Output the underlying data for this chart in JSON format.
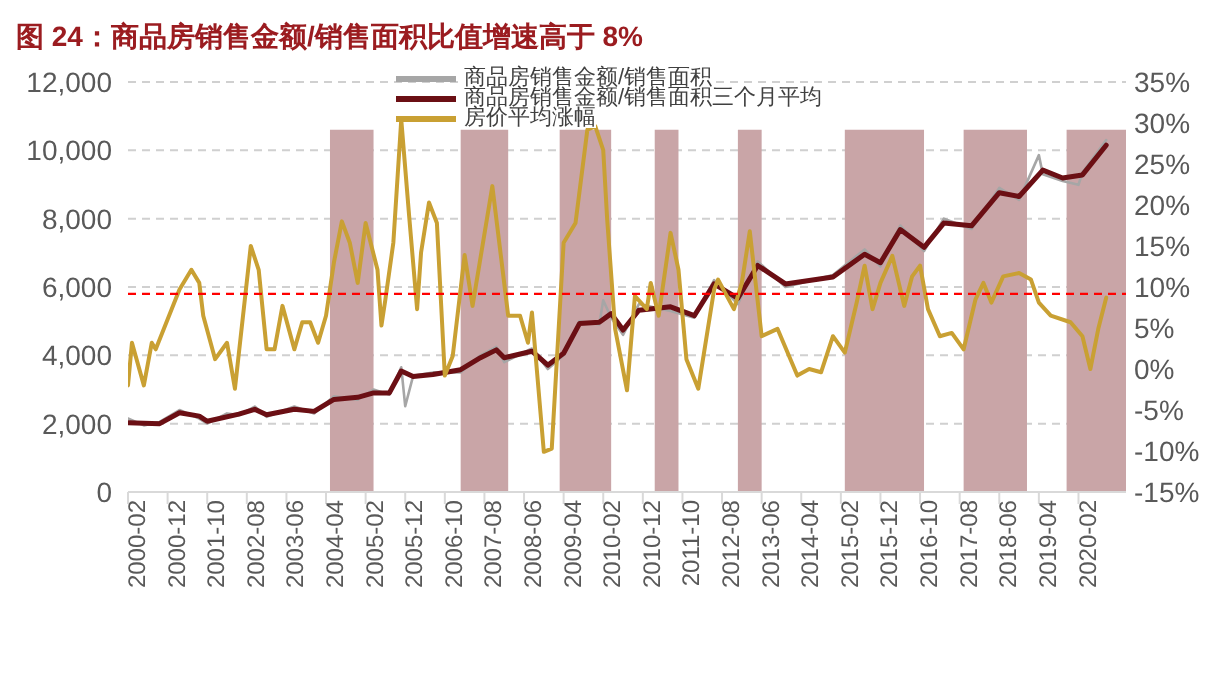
{
  "chart_data": {
    "type": "line",
    "title": "图 24：商品房销售金额/销售面积比值增速高于 8%",
    "xlim": [
      "2000-02",
      "2021-02"
    ],
    "xticks": [
      "2000-02",
      "2000-12",
      "2001-10",
      "2002-08",
      "2003-06",
      "2004-04",
      "2005-02",
      "2005-12",
      "2006-10",
      "2007-08",
      "2008-06",
      "2009-04",
      "2010-02",
      "2010-12",
      "2011-10",
      "2012-08",
      "2013-06",
      "2014-04",
      "2015-02",
      "2015-12",
      "2016-10",
      "2017-08",
      "2018-06",
      "2019-04",
      "2020-02"
    ],
    "ylim": [
      0,
      12000
    ],
    "yticks": [
      {
        "value": 0,
        "label": "0"
      },
      {
        "value": 2000,
        "label": "2,000"
      },
      {
        "value": 4000,
        "label": "4,000"
      },
      {
        "value": 6000,
        "label": "6,000"
      },
      {
        "value": 8000,
        "label": "8,000"
      },
      {
        "value": 10000,
        "label": "10,000"
      },
      {
        "value": 12000,
        "label": "12,000"
      }
    ],
    "y2lim": [
      -15,
      35
    ],
    "y2ticks": [
      {
        "value": -15,
        "label": "-15%"
      },
      {
        "value": -10,
        "label": "-10%"
      },
      {
        "value": -5,
        "label": "-5%"
      },
      {
        "value": 0,
        "label": "0%"
      },
      {
        "value": 5,
        "label": "5%"
      },
      {
        "value": 10,
        "label": "10%"
      },
      {
        "value": 15,
        "label": "15%"
      },
      {
        "value": 20,
        "label": "20%"
      },
      {
        "value": 25,
        "label": "25%"
      },
      {
        "value": 30,
        "label": "30%"
      },
      {
        "value": 35,
        "label": "35%"
      }
    ],
    "grid": "y",
    "legend": "top",
    "marker": "none",
    "line_style": "solid",
    "series": [
      {
        "name": "商品房销售金额/销售面积",
        "color": "#a6a6a6",
        "x": [
          "2000-02",
          "2000-06",
          "2000-10",
          "2001-03",
          "2001-08",
          "2001-10",
          "2002-03",
          "2002-06",
          "2002-10",
          "2003-01",
          "2003-08",
          "2004-01",
          "2004-06",
          "2004-12",
          "2005-04",
          "2005-08",
          "2005-11",
          "2005-12",
          "2006-02",
          "2006-07",
          "2007-02",
          "2007-07",
          "2007-11",
          "2008-01",
          "2008-08",
          "2008-12",
          "2009-04",
          "2009-08",
          "2010-01",
          "2010-02",
          "2010-04",
          "2010-07",
          "2010-11",
          "2011-07",
          "2012-01",
          "2012-06",
          "2012-12",
          "2013-05",
          "2013-12",
          "2014-12",
          "2015-08",
          "2015-12",
          "2016-05",
          "2016-11",
          "2017-04",
          "2017-11",
          "2018-06",
          "2018-11",
          "2019-04",
          "2019-05",
          "2019-10",
          "2020-02",
          "2020-03",
          "2020-09"
        ],
        "values": [
          2150,
          1950,
          2050,
          2400,
          2150,
          2000,
          2300,
          2250,
          2500,
          2200,
          2500,
          2300,
          2800,
          2700,
          3000,
          2850,
          3650,
          2510,
          3400,
          3500,
          3500,
          4000,
          4250,
          3800,
          4200,
          3600,
          4000,
          5000,
          4900,
          5610,
          5100,
          4600,
          5500,
          5300,
          5100,
          6200,
          5500,
          6750,
          6000,
          6350,
          7100,
          6600,
          7800,
          7050,
          8000,
          7700,
          8900,
          8550,
          9860,
          9300,
          9100,
          8990,
          9350,
          10300
        ]
      },
      {
        "name": "商品房销售金额/销售面积三个月平均",
        "color": "#6b0f14",
        "x": [
          "2000-02",
          "2000-10",
          "2001-03",
          "2001-08",
          "2001-10",
          "2002-06",
          "2002-10",
          "2003-01",
          "2003-08",
          "2004-01",
          "2004-06",
          "2004-12",
          "2005-04",
          "2005-08",
          "2005-11",
          "2006-02",
          "2006-07",
          "2007-02",
          "2007-07",
          "2007-11",
          "2008-01",
          "2008-08",
          "2008-12",
          "2009-04",
          "2009-08",
          "2010-01",
          "2010-04",
          "2010-07",
          "2010-11",
          "2011-07",
          "2012-01",
          "2012-06",
          "2012-12",
          "2013-05",
          "2013-12",
          "2014-12",
          "2015-08",
          "2015-12",
          "2016-05",
          "2016-11",
          "2017-04",
          "2017-11",
          "2018-06",
          "2018-11",
          "2019-05",
          "2019-10",
          "2020-03",
          "2020-09"
        ],
        "values": [
          2030,
          2000,
          2320,
          2220,
          2070,
          2280,
          2420,
          2260,
          2420,
          2360,
          2710,
          2770,
          2900,
          2900,
          3540,
          3380,
          3440,
          3580,
          3930,
          4160,
          3930,
          4120,
          3710,
          4060,
          4930,
          4970,
          5220,
          4740,
          5320,
          5420,
          5160,
          6090,
          5670,
          6630,
          6090,
          6290,
          6960,
          6710,
          7680,
          7160,
          7870,
          7790,
          8760,
          8650,
          9420,
          9190,
          9280,
          10150
        ]
      },
      {
        "name": "房价平均涨幅",
        "color": "#c9a033",
        "axis": "y2",
        "x": [
          "2000-02",
          "2000-03",
          "2000-06",
          "2000-08",
          "2000-09",
          "2001-03",
          "2001-06",
          "2001-08",
          "2001-09",
          "2001-12",
          "2002-03",
          "2002-05",
          "2002-09",
          "2002-11",
          "2003-01",
          "2003-03",
          "2003-05",
          "2003-08",
          "2003-10",
          "2003-12",
          "2004-02",
          "2004-04",
          "2004-06",
          "2004-08",
          "2004-10",
          "2004-12",
          "2005-02",
          "2005-05",
          "2005-06",
          "2005-07",
          "2005-09",
          "2005-11",
          "2006-01",
          "2006-03",
          "2006-04",
          "2006-06",
          "2006-08",
          "2006-10",
          "2006-12",
          "2007-03",
          "2007-05",
          "2007-10",
          "2008-02",
          "2008-05",
          "2008-07",
          "2008-08",
          "2008-11",
          "2009-01",
          "2009-04",
          "2009-07",
          "2009-10",
          "2009-12",
          "2010-02",
          "2010-03",
          "2010-05",
          "2010-08",
          "2010-10",
          "2011-01",
          "2011-02",
          "2011-04",
          "2011-07",
          "2011-09",
          "2011-11",
          "2012-02",
          "2012-06",
          "2012-07",
          "2012-11",
          "2013-01",
          "2013-03",
          "2013-06",
          "2013-10",
          "2014-03",
          "2014-06",
          "2014-09",
          "2014-12",
          "2015-03",
          "2015-06",
          "2015-08",
          "2015-10",
          "2015-12",
          "2016-03",
          "2016-06",
          "2016-08",
          "2016-10",
          "2016-12",
          "2017-03",
          "2017-06",
          "2017-09",
          "2017-12",
          "2018-02",
          "2018-04",
          "2018-07",
          "2018-11",
          "2019-02",
          "2019-04",
          "2019-07",
          "2019-12",
          "2020-03",
          "2020-05",
          "2020-07",
          "2020-09"
        ],
        "values": [
          -2.0,
          3.2,
          -2.0,
          3.2,
          2.4,
          9.7,
          12.1,
          10.5,
          6.5,
          1.2,
          3.2,
          -2.4,
          15.0,
          12.1,
          2.4,
          2.4,
          7.7,
          2.4,
          5.7,
          5.7,
          3.2,
          6.5,
          13.0,
          18.0,
          15.4,
          10.5,
          17.8,
          12.1,
          5.3,
          8.5,
          15.4,
          30.4,
          18.6,
          7.3,
          14.2,
          20.3,
          17.8,
          -0.8,
          1.6,
          13.9,
          7.7,
          22.3,
          6.5,
          6.5,
          3.2,
          6.9,
          -10.1,
          -9.7,
          15.4,
          17.8,
          29.2,
          29.6,
          26.7,
          18.2,
          4.9,
          -2.6,
          8.9,
          7.3,
          10.5,
          6.5,
          16.6,
          12.1,
          1.2,
          -2.4,
          9.7,
          10.9,
          7.3,
          10.5,
          16.8,
          4.0,
          4.9,
          -0.8,
          0,
          -0.4,
          4.0,
          2.0,
          8.1,
          12.6,
          7.3,
          10.5,
          13.8,
          7.7,
          11.3,
          12.6,
          7.3,
          4.0,
          4.4,
          2.4,
          8.5,
          10.5,
          8.1,
          11.3,
          11.7,
          10.9,
          8.1,
          6.5,
          5.7,
          4.0,
          0,
          4.9,
          8.7
        ]
      }
    ],
    "ref_lines": [
      {
        "axis": "y",
        "value": 5800,
        "color": "#ff0000",
        "line_style": "dashed"
      }
    ],
    "bands": [
      {
        "axis": "x",
        "from": "2004-05",
        "to": "2005-04",
        "color": "#c9a5a7"
      },
      {
        "axis": "x",
        "from": "2007-02",
        "to": "2008-02",
        "color": "#c9a5a7"
      },
      {
        "axis": "x",
        "from": "2009-03",
        "to": "2010-04",
        "color": "#c9a5a7"
      },
      {
        "axis": "x",
        "from": "2011-03",
        "to": "2011-09",
        "color": "#c9a5a7"
      },
      {
        "axis": "x",
        "from": "2012-12",
        "to": "2013-06",
        "color": "#c9a5a7"
      },
      {
        "axis": "x",
        "from": "2015-03",
        "to": "2016-11",
        "color": "#c9a5a7"
      },
      {
        "axis": "x",
        "from": "2017-09",
        "to": "2019-01",
        "color": "#c9a5a7"
      },
      {
        "axis": "x",
        "from": "2019-11",
        "to": "2021-02",
        "color": "#c9a5a7"
      }
    ]
  }
}
